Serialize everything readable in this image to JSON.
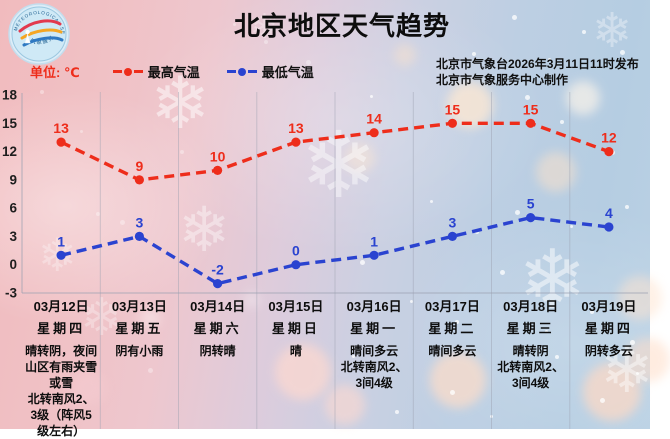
{
  "title": "北京地区天气趋势",
  "unit_label": "单位: ℃",
  "publisher": {
    "line1": "北京市气象台2026年3月11日11时发布",
    "line2": "北京市气象服务中心制作"
  },
  "legend": [
    {
      "label": "最高气温",
      "color": "#ee2d1b"
    },
    {
      "label": "最低气温",
      "color": "#2a43d0"
    }
  ],
  "logo": {
    "arc_text_top": "METEOROLOGICAL SERVICE",
    "arc_text_bottom": "气象服务"
  },
  "chart_data": {
    "type": "line",
    "title": "北京地区天气趋势",
    "unit": "℃",
    "categories": [
      "03月12日",
      "03月13日",
      "03月14日",
      "03月15日",
      "03月16日",
      "03月17日",
      "03月18日",
      "03月19日"
    ],
    "series": [
      {
        "name": "最高气温",
        "color": "#ee2d1b",
        "style": "dashed",
        "values": [
          13,
          9,
          10,
          13,
          14,
          15,
          15,
          12
        ]
      },
      {
        "name": "最低气温",
        "color": "#2a43d0",
        "style": "dashed",
        "values": [
          1,
          3,
          -2,
          0,
          1,
          3,
          5,
          4
        ]
      }
    ],
    "ylim": [
      -3,
      18
    ],
    "ytick_step": 3,
    "grid": "vertical-column-separators",
    "legend_position": "top-left"
  },
  "days": [
    {
      "date": "03月12日",
      "weekday": "星期四",
      "weather": "晴转阴，夜间山区有雨夹雪或雪",
      "wind": "北转南风2、3级（阵风5级左右）"
    },
    {
      "date": "03月13日",
      "weekday": "星期五",
      "weather": "阴有小雨",
      "wind": ""
    },
    {
      "date": "03月14日",
      "weekday": "星期六",
      "weather": "阴转晴",
      "wind": ""
    },
    {
      "date": "03月15日",
      "weekday": "星期日",
      "weather": "晴",
      "wind": ""
    },
    {
      "date": "03月16日",
      "weekday": "星期一",
      "weather": "晴间多云",
      "wind": "北转南风2、3间4级"
    },
    {
      "date": "03月17日",
      "weekday": "星期二",
      "weather": "晴间多云",
      "wind": ""
    },
    {
      "date": "03月18日",
      "weekday": "星期三",
      "weather": "晴转阴",
      "wind": ""
    },
    {
      "date": "03月19日",
      "weekday": "星期四",
      "weather": "阴转多云",
      "wind": ""
    }
  ],
  "days_note": {
    "day18_wind": "北转南风2、3间4级"
  },
  "colors": {
    "max_temp": "#ee2d1b",
    "min_temp": "#2a43d0",
    "text": "#0d0d0d",
    "grid": "#9ba0b0",
    "bg_left": "#f1bbbe",
    "bg_right": "#b5cde2"
  }
}
